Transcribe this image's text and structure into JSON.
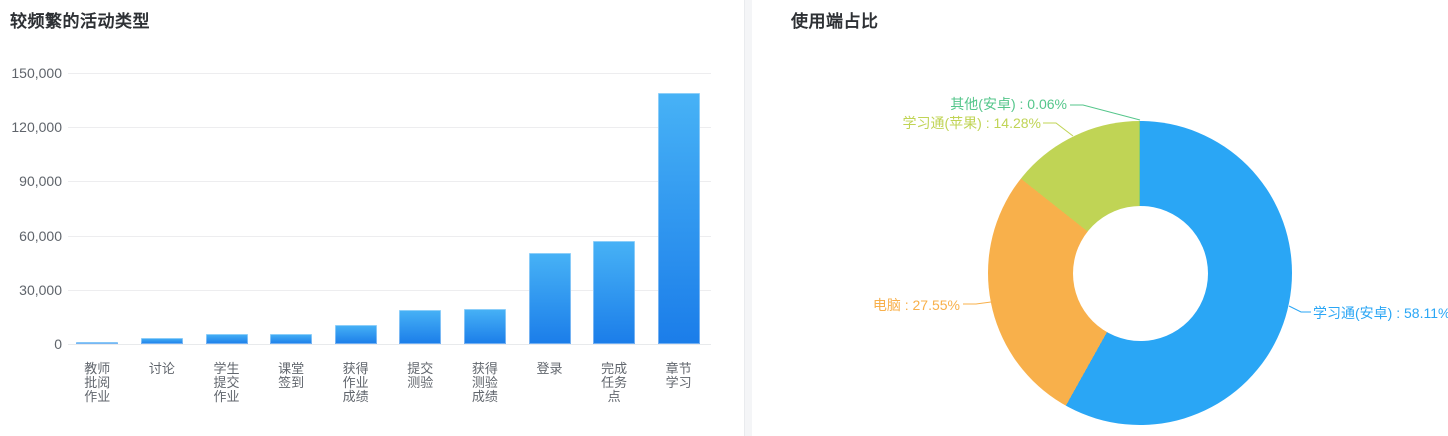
{
  "left_panel": {
    "title": "较频繁的活动类型"
  },
  "right_panel": {
    "title": "使用端占比"
  },
  "chart_data": [
    {
      "type": "bar",
      "title": "较频繁的活动类型",
      "categories": [
        "教师批阅作业",
        "讨论",
        "学生提交作业",
        "课堂签到",
        "获得作业成绩",
        "提交测验",
        "获得测验成绩",
        "登录",
        "完成任务点",
        "章节学习"
      ],
      "category_lines": [
        [
          "教师",
          "批阅",
          "作业"
        ],
        [
          "讨论"
        ],
        [
          "学生",
          "提交",
          "作业"
        ],
        [
          "课堂",
          "签到"
        ],
        [
          "获得",
          "作业",
          "成绩"
        ],
        [
          "提交",
          "测验"
        ],
        [
          "获得",
          "测验",
          "成绩"
        ],
        [
          "登录"
        ],
        [
          "完成",
          "任务",
          "点"
        ],
        [
          "章节",
          "学习"
        ]
      ],
      "values": [
        1200,
        3500,
        5600,
        5300,
        10300,
        19000,
        19300,
        50300,
        57000,
        139000
      ],
      "xlabel": "",
      "ylabel": "",
      "ylim": [
        0,
        150000
      ],
      "yticks": [
        0,
        30000,
        60000,
        90000,
        120000,
        150000
      ],
      "ytick_labels": [
        "0",
        "30,000",
        "60,000",
        "90,000",
        "120,000",
        "150,000"
      ],
      "grid": true,
      "legend": false,
      "bar_gradient_top": "#47b2f6",
      "bar_gradient_bottom": "#1b7de9"
    },
    {
      "type": "pie",
      "title": "使用端占比",
      "donut": true,
      "start_angle_deg_from_top": 0,
      "clockwise": true,
      "inner_radius_ratio": 0.44,
      "slices": [
        {
          "label": "学习通(安卓)",
          "value": 58.11,
          "display": "学习通(安卓) : 58.11%",
          "color": "#2aa6f5"
        },
        {
          "label": "电脑",
          "value": 27.55,
          "display": "电脑 : 27.55%",
          "color": "#f8b04b"
        },
        {
          "label": "学习通(苹果)",
          "value": 14.28,
          "display": "学习通(苹果) : 14.28%",
          "color": "#c0d455"
        },
        {
          "label": "其他(安卓)",
          "value": 0.06,
          "display": "其他(安卓) : 0.06%",
          "color": "#55c68b"
        }
      ]
    }
  ]
}
